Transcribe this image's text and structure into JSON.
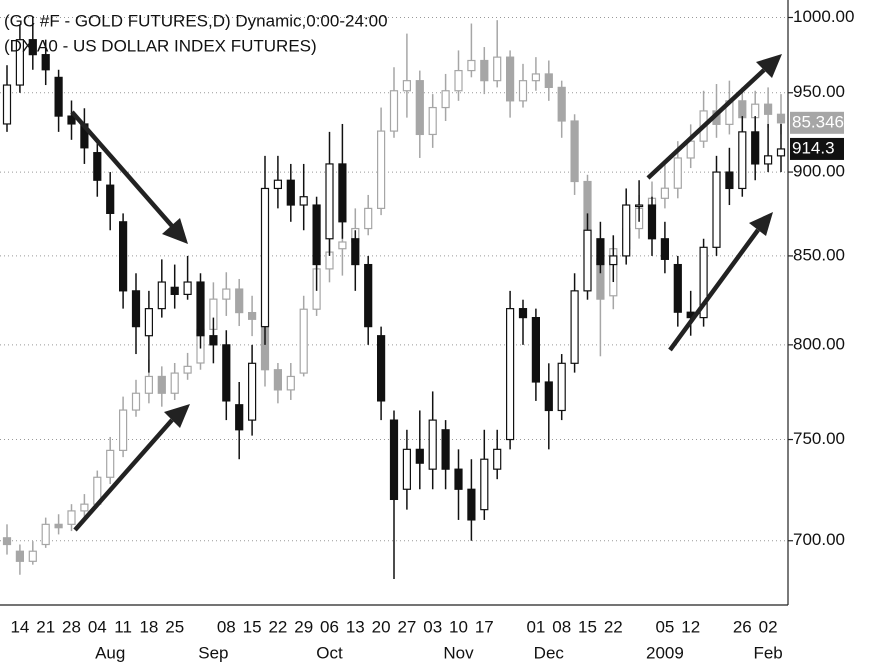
{
  "chart_data": {
    "type": "candlestick",
    "log": true,
    "grid": true,
    "ylim": [
      670,
      1012
    ],
    "yticks": [
      {
        "value": 700,
        "label": "700.00"
      },
      {
        "value": 750,
        "label": "750.00"
      },
      {
        "value": 800,
        "label": "800.00"
      },
      {
        "value": 850,
        "label": "850.00"
      },
      {
        "value": 900,
        "label": "900.00"
      },
      {
        "value": 950,
        "label": "950.00"
      },
      {
        "value": 1000,
        "label": "1000.00"
      }
    ],
    "y2lim": [
      71,
      89
    ],
    "categories": [
      null,
      "14",
      null,
      "21",
      null,
      "28",
      null,
      "04",
      null,
      "11",
      null,
      "18",
      null,
      "25",
      null,
      null,
      null,
      "08",
      null,
      "15",
      null,
      "22",
      null,
      "29",
      null,
      "06",
      null,
      "13",
      null,
      "20",
      null,
      "27",
      null,
      "03",
      null,
      "10",
      null,
      "17",
      null,
      null,
      null,
      "01",
      null,
      "08",
      null,
      "15",
      null,
      "22",
      null,
      null,
      null,
      "05",
      null,
      "12",
      null,
      null,
      null,
      "26",
      null,
      "02",
      null
    ],
    "months": [
      null,
      null,
      null,
      null,
      null,
      null,
      null,
      null,
      "Aug",
      null,
      null,
      null,
      null,
      null,
      null,
      null,
      "Sep",
      null,
      null,
      null,
      null,
      null,
      null,
      null,
      null,
      "Oct",
      null,
      null,
      null,
      null,
      null,
      null,
      null,
      null,
      null,
      "Nov",
      null,
      null,
      null,
      null,
      null,
      null,
      "Dec",
      null,
      null,
      null,
      null,
      null,
      null,
      null,
      null,
      "2009",
      null,
      null,
      null,
      null,
      null,
      null,
      null,
      "Feb",
      null
    ],
    "series": [
      {
        "name": "(GC #F - GOLD FUTURES,D) Dynamic,0:00-24:00",
        "color": "#111111",
        "open": [
          930,
          955,
          985,
          975,
          960,
          935,
          930,
          912,
          892,
          870,
          830,
          805,
          820,
          832,
          828,
          835,
          805,
          800,
          768,
          760,
          810,
          890,
          895,
          880,
          880,
          860,
          905,
          860,
          845,
          805,
          760,
          725,
          745,
          735,
          755,
          735,
          725,
          715,
          735,
          750,
          820,
          815,
          780,
          765,
          790,
          830,
          860,
          845,
          850,
          880,
          880,
          860,
          845,
          818,
          815,
          855,
          900,
          890,
          925,
          905,
          910
        ],
        "high": [
          968,
          995,
          1000,
          985,
          965,
          945,
          940,
          920,
          900,
          875,
          840,
          830,
          848,
          845,
          850,
          840,
          815,
          808,
          780,
          800,
          910,
          910,
          905,
          905,
          885,
          925,
          930,
          865,
          850,
          810,
          765,
          755,
          765,
          775,
          760,
          745,
          740,
          755,
          755,
          830,
          825,
          820,
          790,
          795,
          840,
          875,
          870,
          862,
          890,
          895,
          885,
          870,
          850,
          830,
          860,
          910,
          915,
          935,
          935,
          930,
          930
        ],
        "low": [
          925,
          950,
          965,
          955,
          925,
          920,
          905,
          885,
          865,
          820,
          795,
          785,
          815,
          820,
          825,
          798,
          790,
          760,
          740,
          752,
          800,
          878,
          870,
          865,
          830,
          850,
          860,
          830,
          800,
          760,
          682,
          715,
          725,
          725,
          725,
          710,
          700,
          710,
          730,
          745,
          800,
          770,
          745,
          760,
          785,
          825,
          840,
          835,
          845,
          870,
          850,
          840,
          810,
          805,
          810,
          850,
          880,
          885,
          895,
          900,
          900
        ],
        "close": [
          955,
          985,
          975,
          965,
          935,
          930,
          915,
          895,
          875,
          830,
          810,
          820,
          835,
          828,
          835,
          805,
          800,
          770,
          755,
          790,
          890,
          895,
          880,
          885,
          845,
          905,
          870,
          845,
          810,
          770,
          720,
          745,
          738,
          760,
          735,
          725,
          710,
          740,
          745,
          820,
          815,
          780,
          765,
          790,
          830,
          865,
          845,
          850,
          880,
          880,
          860,
          848,
          818,
          815,
          855,
          900,
          890,
          925,
          905,
          910,
          914.3
        ]
      },
      {
        "name": "(DX A0 - US DOLLAR INDEX FUTURES)",
        "color": "#a6a6a6",
        "axis": "y2",
        "open": [
          73.0,
          72.6,
          72.3,
          72.8,
          73.4,
          73.4,
          73.8,
          74.0,
          74.8,
          75.6,
          76.8,
          77.3,
          77.8,
          77.3,
          77.9,
          78.2,
          79.2,
          80.1,
          80.4,
          79.7,
          79.4,
          78.0,
          77.4,
          77.9,
          79.8,
          81.0,
          81.6,
          81.8,
          82.2,
          82.8,
          85.1,
          86.3,
          86.6,
          85.0,
          85.8,
          86.3,
          86.9,
          87.2,
          86.6,
          87.3,
          86.0,
          86.6,
          86.8,
          86.4,
          85.4,
          83.6,
          81.3,
          80.2,
          81.6,
          82.2,
          82.8,
          83.1,
          83.4,
          84.3,
          84.8,
          85.7,
          85.3,
          86.0,
          85.5,
          85.9,
          85.6
        ],
        "high": [
          73.4,
          72.8,
          72.9,
          73.6,
          73.7,
          74.0,
          74.3,
          75.0,
          76.0,
          77.2,
          77.7,
          78.3,
          78.1,
          78.2,
          78.5,
          79.6,
          80.6,
          80.9,
          80.7,
          80.2,
          79.6,
          78.2,
          78.2,
          80.2,
          81.5,
          82.2,
          82.4,
          82.8,
          83.2,
          85.8,
          87.0,
          88.0,
          86.9,
          86.2,
          86.8,
          87.5,
          88.3,
          87.6,
          88.4,
          87.5,
          87.1,
          87.3,
          87.2,
          86.6,
          85.6,
          83.8,
          81.8,
          82.0,
          82.7,
          83.2,
          83.6,
          84.1,
          84.8,
          85.3,
          86.3,
          86.5,
          86.6,
          86.4,
          86.3,
          86.4,
          86.2
        ],
        "low": [
          72.5,
          71.9,
          72.2,
          72.7,
          73.1,
          73.2,
          73.6,
          73.9,
          74.6,
          75.4,
          76.6,
          77.0,
          76.9,
          77.1,
          77.7,
          78.0,
          79.0,
          79.6,
          79.3,
          79.0,
          77.5,
          77.0,
          77.1,
          77.8,
          79.6,
          80.6,
          80.8,
          81.5,
          82.0,
          82.6,
          84.9,
          85.5,
          84.3,
          84.6,
          85.4,
          86.0,
          86.7,
          86.2,
          86.4,
          85.5,
          85.8,
          86.3,
          86.0,
          84.9,
          83.2,
          80.8,
          78.4,
          79.8,
          81.2,
          81.9,
          82.5,
          82.8,
          83.1,
          84.0,
          84.6,
          84.9,
          85.0,
          85.0,
          85.2,
          85.2,
          85.0
        ],
        "close": [
          72.8,
          72.3,
          72.6,
          73.4,
          73.3,
          73.8,
          74.0,
          74.8,
          75.6,
          76.8,
          77.3,
          77.8,
          77.3,
          77.9,
          78.1,
          79.2,
          80.1,
          80.4,
          79.7,
          79.5,
          78.0,
          77.4,
          77.8,
          79.8,
          81.0,
          81.5,
          81.8,
          82.2,
          82.8,
          85.1,
          86.3,
          86.6,
          85.0,
          85.8,
          86.3,
          86.9,
          87.2,
          86.6,
          87.3,
          86.0,
          86.6,
          86.8,
          86.4,
          85.4,
          83.6,
          81.3,
          80.1,
          81.6,
          82.2,
          82.8,
          83.1,
          83.4,
          84.3,
          84.8,
          85.7,
          85.3,
          86.0,
          85.5,
          85.9,
          85.6,
          85.346
        ]
      }
    ]
  }
}
